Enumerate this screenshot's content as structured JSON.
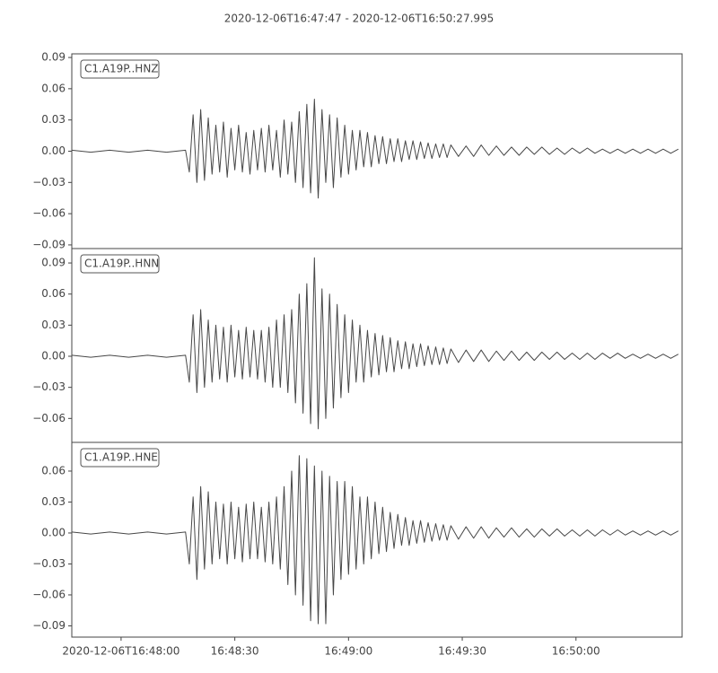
{
  "chart_data": [
    {
      "type": "line",
      "title": "2020-12-06T16:47:47  -  2020-12-06T16:50:27.995",
      "x": [
        0,
        5,
        10,
        15,
        20,
        25,
        30,
        31,
        32,
        33,
        34,
        35,
        36,
        37,
        38,
        39,
        40,
        41,
        42,
        43,
        44,
        45,
        46,
        47,
        48,
        49,
        50,
        51,
        52,
        53,
        54,
        55,
        56,
        57,
        58,
        59,
        60,
        61,
        62,
        63,
        64,
        65,
        66,
        67,
        68,
        69,
        70,
        71,
        72,
        73,
        74,
        75,
        76,
        77,
        78,
        79,
        80,
        81,
        82,
        83,
        84,
        85,
        86,
        87,
        88,
        89,
        90,
        91,
        92,
        93,
        94,
        95,
        96,
        97,
        98,
        99,
        100,
        102,
        104,
        106,
        108,
        110,
        112,
        114,
        116,
        118,
        120,
        122,
        124,
        126,
        128,
        130,
        132,
        134,
        136,
        138,
        140,
        142,
        144,
        146,
        148,
        150,
        152,
        154,
        156,
        158,
        160
      ],
      "series": [
        {
          "name": "C1.A19P..HNZ",
          "color": "#474747",
          "values": [
            0.001,
            -0.001,
            0.001,
            -0.001,
            0.001,
            -0.001,
            0.001,
            -0.02,
            0.035,
            -0.03,
            0.04,
            -0.028,
            0.032,
            -0.022,
            0.025,
            -0.02,
            0.028,
            -0.025,
            0.022,
            -0.018,
            0.025,
            -0.02,
            0.018,
            -0.022,
            0.02,
            -0.018,
            0.022,
            -0.02,
            0.025,
            -0.018,
            0.02,
            -0.025,
            0.03,
            -0.022,
            0.028,
            -0.03,
            0.038,
            -0.035,
            0.045,
            -0.04,
            0.05,
            -0.045,
            0.04,
            -0.03,
            0.035,
            -0.035,
            0.032,
            -0.025,
            0.025,
            -0.022,
            0.02,
            -0.018,
            0.02,
            -0.015,
            0.018,
            -0.015,
            0.015,
            -0.012,
            0.014,
            -0.012,
            0.012,
            -0.01,
            0.012,
            -0.01,
            0.01,
            -0.008,
            0.01,
            -0.008,
            0.009,
            -0.007,
            0.008,
            -0.007,
            0.007,
            -0.006,
            0.007,
            -0.006,
            0.006,
            -0.005,
            0.005,
            -0.005,
            0.006,
            -0.004,
            0.005,
            -0.004,
            0.004,
            -0.004,
            0.004,
            -0.003,
            0.004,
            -0.003,
            0.003,
            -0.003,
            0.003,
            -0.002,
            0.003,
            -0.002,
            0.002,
            -0.002,
            0.002,
            -0.002,
            0.002,
            -0.002,
            0.002,
            -0.002,
            0.002,
            -0.002,
            0.002
          ]
        }
      ],
      "xlim": [
        0,
        160.995
      ],
      "ylim": [
        -0.0935,
        0.0935
      ],
      "yticks": [
        0.09,
        0.06,
        0.03,
        {
          "value": 0,
          "label": "0.00"
        },
        {
          "value": -0.03,
          "label": "−0.03"
        },
        {
          "value": -0.06,
          "label": "−0.06"
        },
        {
          "value": -0.09,
          "label": "−0.09"
        }
      ]
    },
    {
      "type": "line",
      "x": [
        0,
        5,
        10,
        15,
        20,
        25,
        30,
        31,
        32,
        33,
        34,
        35,
        36,
        37,
        38,
        39,
        40,
        41,
        42,
        43,
        44,
        45,
        46,
        47,
        48,
        49,
        50,
        51,
        52,
        53,
        54,
        55,
        56,
        57,
        58,
        59,
        60,
        61,
        62,
        63,
        64,
        65,
        66,
        67,
        68,
        69,
        70,
        71,
        72,
        73,
        74,
        75,
        76,
        77,
        78,
        79,
        80,
        81,
        82,
        83,
        84,
        85,
        86,
        87,
        88,
        89,
        90,
        91,
        92,
        93,
        94,
        95,
        96,
        97,
        98,
        99,
        100,
        102,
        104,
        106,
        108,
        110,
        112,
        114,
        116,
        118,
        120,
        122,
        124,
        126,
        128,
        130,
        132,
        134,
        136,
        138,
        140,
        142,
        144,
        146,
        148,
        150,
        152,
        154,
        156,
        158,
        160
      ],
      "series": [
        {
          "name": "C1.A19P..HNN",
          "color": "#474747",
          "values": [
            0.001,
            -0.001,
            0.001,
            -0.001,
            0.001,
            -0.001,
            0.001,
            -0.025,
            0.04,
            -0.035,
            0.045,
            -0.03,
            0.035,
            -0.025,
            0.03,
            -0.022,
            0.028,
            -0.025,
            0.03,
            -0.02,
            0.025,
            -0.022,
            0.028,
            -0.02,
            0.025,
            -0.022,
            0.025,
            -0.025,
            0.028,
            -0.03,
            0.035,
            -0.03,
            0.04,
            -0.035,
            0.045,
            -0.045,
            0.06,
            -0.055,
            0.07,
            -0.065,
            0.095,
            -0.07,
            0.065,
            -0.06,
            0.06,
            -0.05,
            0.05,
            -0.04,
            0.04,
            -0.035,
            0.035,
            -0.025,
            0.03,
            -0.025,
            0.025,
            -0.02,
            0.022,
            -0.018,
            0.02,
            -0.015,
            0.018,
            -0.015,
            0.015,
            -0.012,
            0.014,
            -0.012,
            0.012,
            -0.01,
            0.012,
            -0.009,
            0.01,
            -0.008,
            0.009,
            -0.008,
            0.008,
            -0.007,
            0.007,
            -0.006,
            0.006,
            -0.005,
            0.006,
            -0.005,
            0.005,
            -0.004,
            0.005,
            -0.004,
            0.004,
            -0.004,
            0.004,
            -0.003,
            0.004,
            -0.003,
            0.003,
            -0.003,
            0.003,
            -0.003,
            0.003,
            -0.002,
            0.003,
            -0.002,
            0.002,
            -0.002,
            0.002,
            -0.002,
            0.002,
            -0.002,
            0.002
          ]
        }
      ],
      "xlim": [
        0,
        160.995
      ],
      "ylim": [
        -0.0831,
        0.1039
      ],
      "yticks": [
        0.09,
        0.06,
        0.03,
        {
          "value": 0,
          "label": "0.00"
        },
        {
          "value": -0.03,
          "label": "−0.03"
        },
        {
          "value": -0.06,
          "label": "−0.06"
        }
      ]
    },
    {
      "type": "line",
      "x": [
        0,
        5,
        10,
        15,
        20,
        25,
        30,
        31,
        32,
        33,
        34,
        35,
        36,
        37,
        38,
        39,
        40,
        41,
        42,
        43,
        44,
        45,
        46,
        47,
        48,
        49,
        50,
        51,
        52,
        53,
        54,
        55,
        56,
        57,
        58,
        59,
        60,
        61,
        62,
        63,
        64,
        65,
        66,
        67,
        68,
        69,
        70,
        71,
        72,
        73,
        74,
        75,
        76,
        77,
        78,
        79,
        80,
        81,
        82,
        83,
        84,
        85,
        86,
        87,
        88,
        89,
        90,
        91,
        92,
        93,
        94,
        95,
        96,
        97,
        98,
        99,
        100,
        102,
        104,
        106,
        108,
        110,
        112,
        114,
        116,
        118,
        120,
        122,
        124,
        126,
        128,
        130,
        132,
        134,
        136,
        138,
        140,
        142,
        144,
        146,
        148,
        150,
        152,
        154,
        156,
        158,
        160
      ],
      "series": [
        {
          "name": "C1.A19P..HNE",
          "color": "#474747",
          "values": [
            0.001,
            -0.001,
            0.001,
            -0.001,
            0.001,
            -0.001,
            0.001,
            -0.03,
            0.035,
            -0.045,
            0.045,
            -0.035,
            0.04,
            -0.03,
            0.03,
            -0.025,
            0.028,
            -0.03,
            0.03,
            -0.025,
            0.025,
            -0.028,
            0.028,
            -0.025,
            0.03,
            -0.025,
            0.025,
            -0.028,
            0.03,
            -0.03,
            0.035,
            -0.035,
            0.045,
            -0.05,
            0.06,
            -0.06,
            0.075,
            -0.07,
            0.072,
            -0.085,
            0.065,
            -0.088,
            0.06,
            -0.088,
            0.055,
            -0.06,
            0.05,
            -0.045,
            0.05,
            -0.04,
            0.045,
            -0.035,
            0.035,
            -0.03,
            0.035,
            -0.025,
            0.03,
            -0.02,
            0.025,
            -0.018,
            0.02,
            -0.015,
            0.018,
            -0.012,
            0.015,
            -0.012,
            0.012,
            -0.01,
            0.012,
            -0.009,
            0.01,
            -0.008,
            0.009,
            -0.007,
            0.008,
            -0.007,
            0.007,
            -0.006,
            0.006,
            -0.005,
            0.006,
            -0.005,
            0.005,
            -0.004,
            0.005,
            -0.004,
            0.004,
            -0.004,
            0.004,
            -0.003,
            0.004,
            -0.003,
            0.003,
            -0.003,
            0.003,
            -0.003,
            0.003,
            -0.002,
            0.003,
            -0.002,
            0.002,
            -0.002,
            0.002,
            -0.002,
            0.002,
            -0.002,
            0.002
          ]
        }
      ],
      "xlim": [
        0,
        160.995
      ],
      "ylim": [
        -0.1009,
        0.0878
      ],
      "yticks": [
        0.06,
        0.03,
        {
          "value": 0,
          "label": "0.00"
        },
        {
          "value": -0.03,
          "label": "−0.03"
        },
        {
          "value": -0.06,
          "label": "−0.06"
        },
        {
          "value": -0.09,
          "label": "−0.09"
        }
      ],
      "xticks": [
        {
          "value": 13,
          "label": "2020-12-06T16:48:00"
        },
        {
          "value": 43,
          "label": "16:48:30"
        },
        {
          "value": 73,
          "label": "16:49:00"
        },
        {
          "value": 103,
          "label": "16:49:30"
        },
        {
          "value": 133,
          "label": "16:50:00"
        }
      ]
    }
  ]
}
